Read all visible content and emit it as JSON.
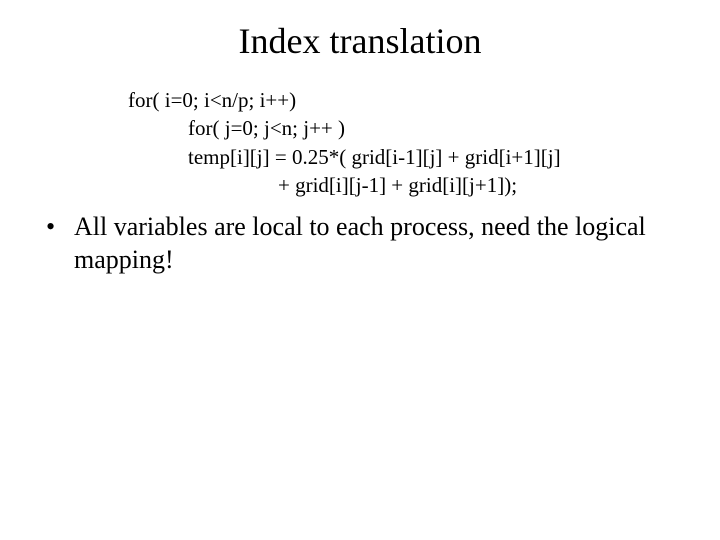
{
  "title": "Index translation",
  "code": {
    "line1": "for( i=0; i<n/p; i++)",
    "line2": "for( j=0; j<n; j++ )",
    "line3": "temp[i][j] = 0.25*( grid[i-1][j] +  grid[i+1][j]",
    "line4": "+ grid[i][j-1] + grid[i][j+1]);"
  },
  "bullet": {
    "marker": "•",
    "text": "All variables are local to each process, need the logical mapping!"
  },
  "style": {
    "background_color": "#ffffff",
    "text_color": "#000000",
    "title_fontsize": 36,
    "code_fontsize": 21,
    "bullet_fontsize": 26,
    "font_family": "Times New Roman"
  }
}
